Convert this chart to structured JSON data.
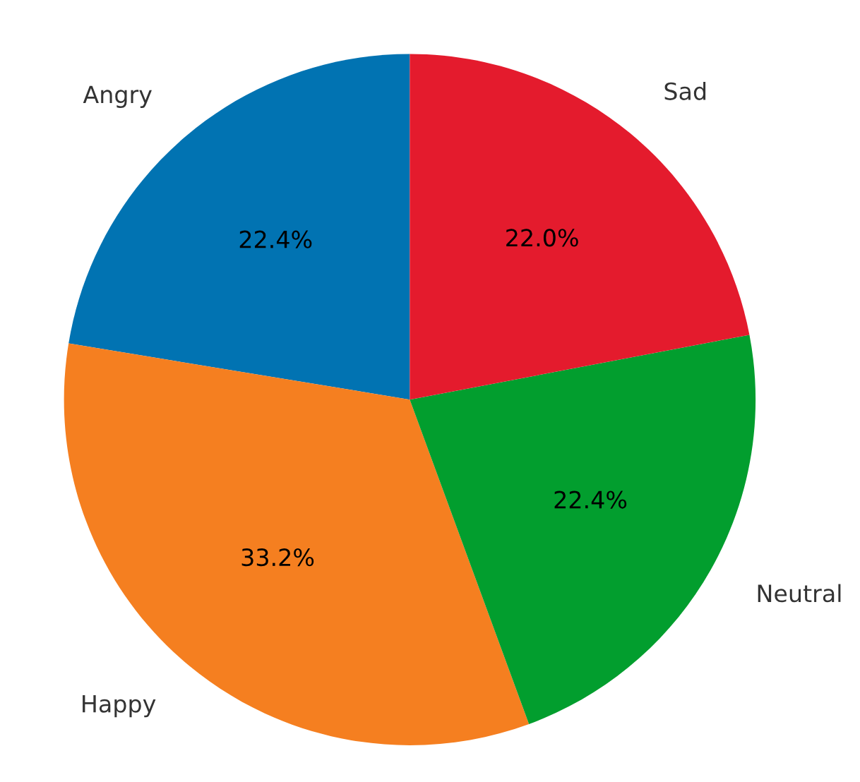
{
  "chart_data": {
    "type": "pie",
    "categories": [
      "Angry",
      "Happy",
      "Neutral",
      "Sad"
    ],
    "values": [
      22.4,
      33.2,
      22.4,
      22.0
    ],
    "value_labels": [
      "22.4%",
      "33.2%",
      "22.4%",
      "22.0%"
    ],
    "colors": [
      "#0173b2",
      "#f57f20",
      "#029e2e",
      "#e41b2d"
    ]
  }
}
